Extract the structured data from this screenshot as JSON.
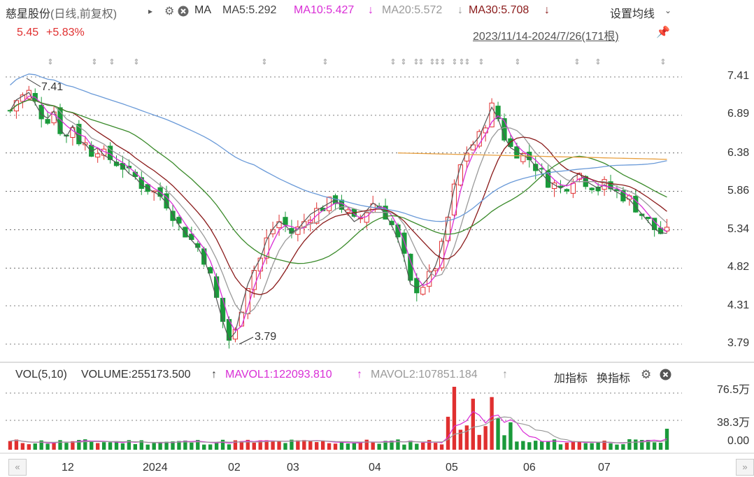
{
  "header": {
    "stock_name": "慈星股份",
    "period_mode": "(日线,前复权)",
    "ma_label": "MA",
    "ma5": "MA5:5.292",
    "ma10": "MA10:5.427",
    "ma10_arrow": "↓",
    "ma20": "MA20:5.572",
    "ma20_arrow": "↓",
    "ma30": "MA30:5.708",
    "ma30_arrow": "↓",
    "settings_label": "设置均线",
    "price": "5.45",
    "change": "+5.83%",
    "date_range": "2023/11/14-2024/7/26(171根)"
  },
  "volume_header": {
    "vol_label": "VOL(5,10)",
    "volume": "VOLUME:255173.500",
    "volume_arrow": "↑",
    "mavol1": "MAVOL1:122093.810",
    "mavol1_arrow": "↑",
    "mavol2": "MAVOL2:107851.184",
    "mavol2_arrow": "↑",
    "add_indicator": "加指标",
    "switch_indicator": "换指标"
  },
  "colors": {
    "up": "#e03030",
    "down": "#1a9a3a",
    "ma5": "#555555",
    "ma10": "#d92ed6",
    "ma20": "#9a9a9a",
    "ma30": "#8a1a1a",
    "ma60": "#3a8a2a",
    "ma120": "#6a9ad8",
    "ma250": "#e8a040"
  },
  "chart_data": [
    {
      "type": "candlestick",
      "y_ticks": [
        "7.41",
        "6.89",
        "6.38",
        "5.86",
        "5.34",
        "4.82",
        "4.31",
        "3.79"
      ],
      "ylim": [
        3.79,
        7.41
      ],
      "x_ticks": [
        "12",
        "2024",
        "02",
        "03",
        "04",
        "05",
        "06",
        "07"
      ],
      "max_label": "7.41",
      "min_label": "3.79",
      "ma5_close": [
        6.95,
        7.1,
        7.15,
        7.2,
        7.05,
        6.9,
        6.85,
        6.95,
        6.7,
        6.6,
        6.75,
        6.55,
        6.5,
        6.4,
        6.45,
        6.35,
        6.3,
        6.25,
        6.2,
        6.1,
        6.05,
        5.95,
        5.9,
        5.85,
        5.8,
        5.7,
        5.55,
        5.4,
        5.3,
        5.2,
        5.1,
        4.95,
        4.7,
        4.4,
        4.1,
        3.85,
        3.95,
        4.3,
        4.6,
        4.8,
        4.95,
        5.2,
        5.35,
        5.45,
        5.4,
        5.3,
        5.35,
        5.45,
        5.55,
        5.6,
        5.65,
        5.7,
        5.75,
        5.65,
        5.55,
        5.45,
        5.5,
        5.6,
        5.7,
        5.65,
        5.55,
        5.4,
        5.2,
        4.95,
        4.6,
        4.55,
        4.6,
        4.7,
        4.85,
        5.1,
        5.5,
        5.9,
        6.2,
        6.4,
        6.5,
        6.6,
        6.8,
        7.0,
        6.85,
        6.6,
        6.45,
        6.4,
        6.35,
        6.3,
        6.2,
        6.1,
        6.0,
        5.95,
        5.9,
        5.95,
        6.05,
        6.1,
        6.0,
        5.95,
        5.9,
        5.95,
        5.9,
        5.85,
        5.8,
        5.75,
        5.65,
        5.55,
        5.45,
        5.35,
        5.3,
        5.29
      ],
      "mavol1": "122093.810",
      "mavol2": "107851.184"
    },
    {
      "type": "bar",
      "series_name": "VOLUME",
      "y_ticks": [
        "76.5万",
        "38.3万",
        "0.00"
      ],
      "ylim": [
        0,
        765000
      ]
    }
  ]
}
